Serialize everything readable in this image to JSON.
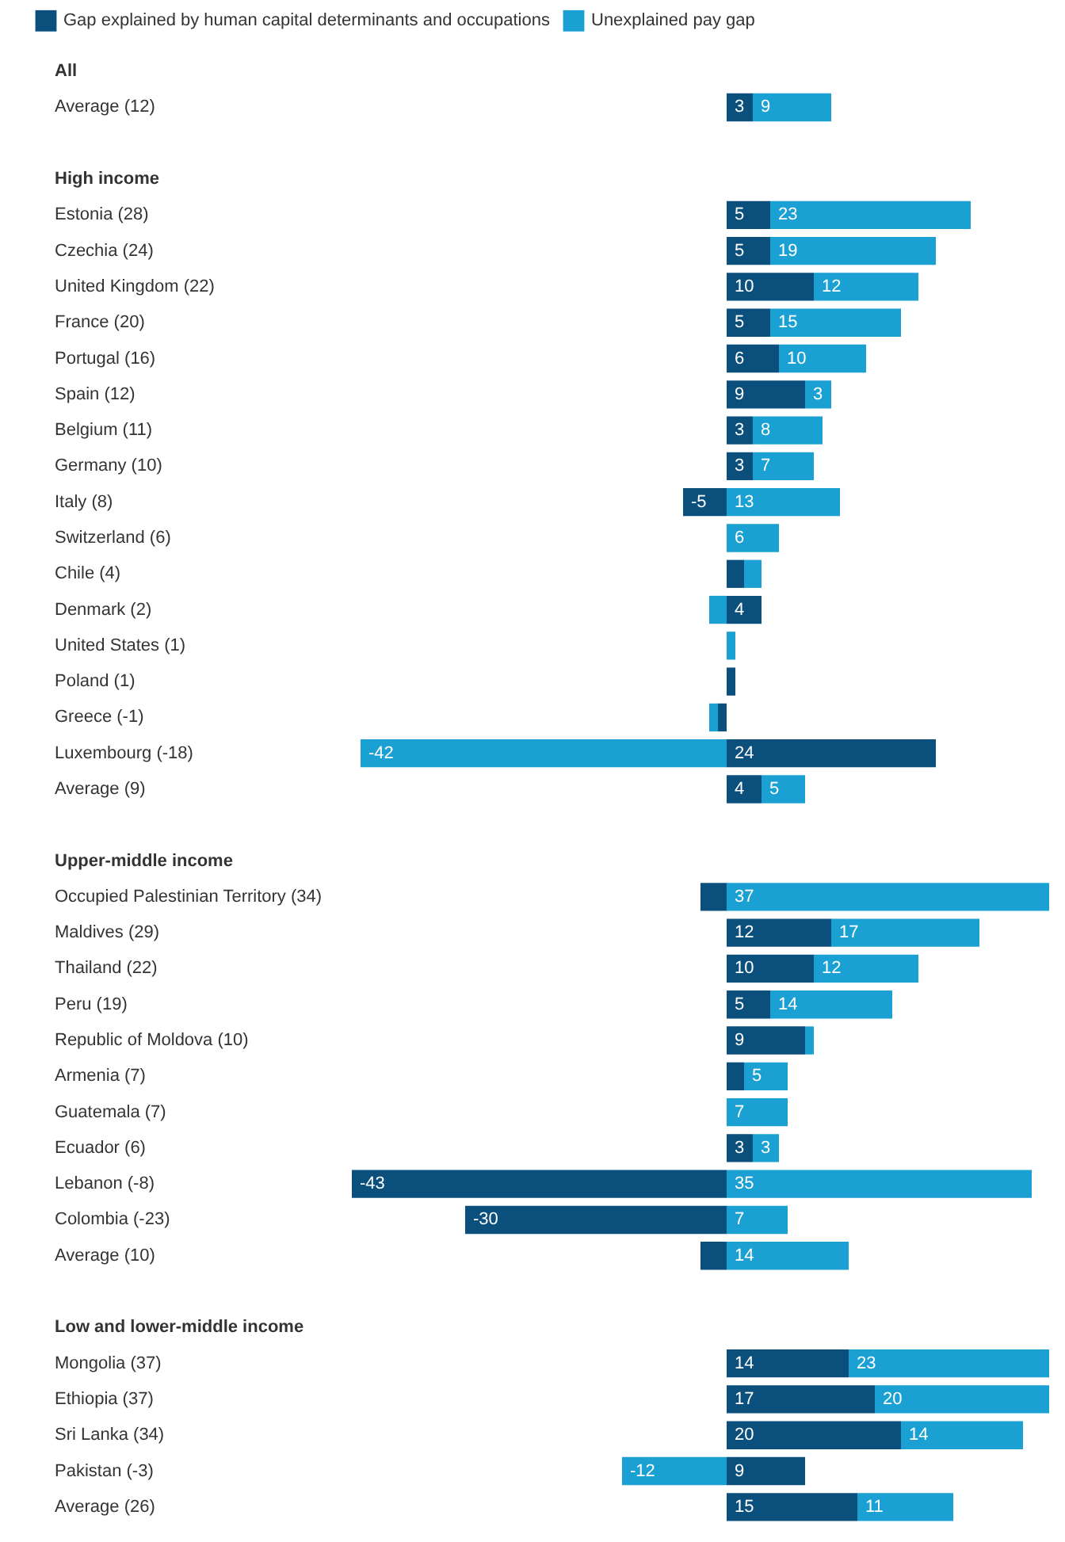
{
  "chart_data": {
    "type": "bar",
    "orientation": "horizontal",
    "stacked": true,
    "legend": "top left",
    "tick_labels": "y",
    "xlim": [
      -43,
      37
    ],
    "categories": [
      "All",
      "Average (12)",
      null,
      "High income",
      "Estonia (28)",
      "Czechia (24)",
      "United Kingdom (22)",
      "France (20)",
      "Portugal (16)",
      "Spain (12)",
      "Belgium (11)",
      "Germany (10)",
      "Italy (8)",
      "Switzerland (6)",
      "Chile (4)",
      "Denmark (2)",
      "United States (1)",
      "Poland (1)",
      "Greece (-1)",
      "Luxembourg (-18)",
      "Average (9)",
      null,
      "Upper-middle income",
      "Occupied Palestinian Territory (34)",
      "Maldives (29)",
      "Thailand (22)",
      "Peru (19)",
      "Republic of Moldova (10)",
      "Armenia (7)",
      "Guatemala (7)",
      "Ecuador (6)",
      "Lebanon (-8)",
      "Colombia (-23)",
      "Average (10)",
      null,
      "Low and lower-middle income",
      "Mongolia (37)",
      "Ethiopia (37)",
      "Sri Lanka (34)",
      "Pakistan (-3)",
      "Average (26)"
    ],
    "series": [
      {
        "name": "Gap explained by human capital determinants and occupations",
        "color": "#0b4f7c",
        "values": [
          null,
          3,
          null,
          null,
          5,
          5,
          10,
          5,
          6,
          9,
          3,
          3,
          -5,
          null,
          2,
          4,
          null,
          1,
          -1,
          24,
          4,
          null,
          null,
          -3,
          12,
          10,
          5,
          9,
          2,
          null,
          3,
          -43,
          -30,
          -3,
          null,
          null,
          14,
          17,
          20,
          9,
          15
        ],
        "value_labels": [
          null,
          "3",
          null,
          null,
          "5",
          "5",
          "10",
          "5",
          "6",
          "9",
          "3",
          "3",
          "-5",
          null,
          null,
          "4",
          null,
          null,
          null,
          "24",
          "4",
          null,
          null,
          null,
          "12",
          "10",
          "5",
          "9",
          null,
          null,
          "3",
          "-43",
          "-30",
          null,
          null,
          null,
          "14",
          "17",
          "20",
          "9",
          "15"
        ]
      },
      {
        "name": "Unexplained pay gap",
        "color": "#1aa0d3",
        "values": [
          null,
          9,
          null,
          null,
          23,
          19,
          12,
          15,
          10,
          3,
          8,
          7,
          13,
          6,
          2,
          -2,
          1,
          null,
          -1,
          -42,
          5,
          null,
          null,
          37,
          17,
          12,
          14,
          1,
          5,
          7,
          3,
          35,
          7,
          14,
          null,
          null,
          23,
          20,
          14,
          -12,
          11
        ],
        "value_labels": [
          null,
          "9",
          null,
          null,
          "23",
          "19",
          "12",
          "15",
          "10",
          "3",
          "8",
          "7",
          "13",
          "6",
          null,
          null,
          null,
          null,
          null,
          "-42",
          "5",
          null,
          null,
          "37",
          "17",
          "12",
          "14",
          null,
          "5",
          "7",
          "3",
          "35",
          "7",
          "14",
          null,
          null,
          "23",
          "20",
          "14",
          "-12",
          "11"
        ]
      }
    ]
  }
}
